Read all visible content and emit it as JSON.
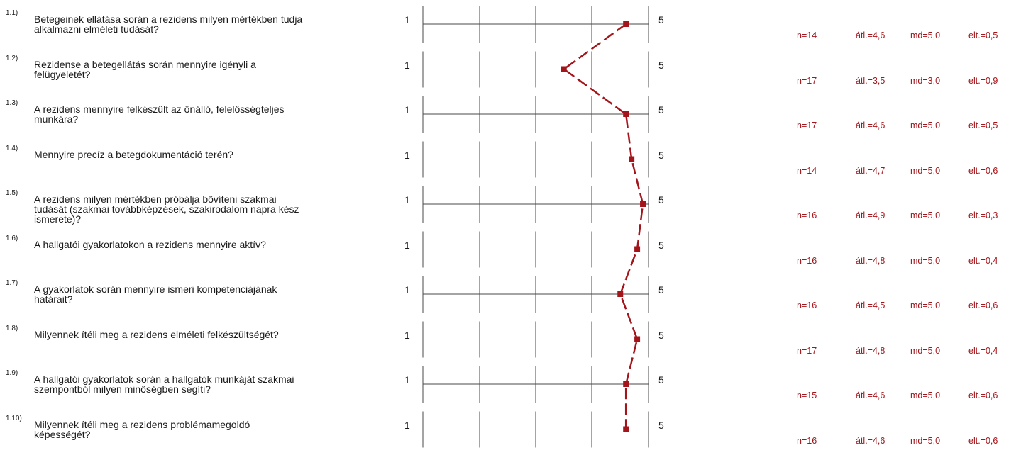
{
  "scale": {
    "min_label": "1",
    "max_label": "5",
    "min": 1,
    "max": 5
  },
  "items": [
    {
      "num": "1.1)",
      "question": "Betegeinek ellátása során a rezidens milyen mértékben tudja alkalmazni elméleti tudását?",
      "n": "n=14",
      "mean": "átl.=4,6",
      "md": "md=5,0",
      "sd": "elt.=0,5"
    },
    {
      "num": "1.2)",
      "question": "Rezidense a betegellátás során mennyire igényli a felügyeletét?",
      "n": "n=17",
      "mean": "átl.=3,5",
      "md": "md=3,0",
      "sd": "elt.=0,9"
    },
    {
      "num": "1.3)",
      "question": "A rezidens mennyire felkészült az önálló, felelősségteljes munkára?",
      "n": "n=17",
      "mean": "átl.=4,6",
      "md": "md=5,0",
      "sd": "elt.=0,5"
    },
    {
      "num": "1.4)",
      "question": "Mennyire precíz a betegdokumentáció terén?",
      "n": "n=14",
      "mean": "átl.=4,7",
      "md": "md=5,0",
      "sd": "elt.=0,6"
    },
    {
      "num": "1.5)",
      "question": "A rezidens milyen mértékben próbálja bővíteni szakmai tudását (szakmai továbbképzések, szakirodalom napra kész ismerete)?",
      "n": "n=16",
      "mean": "átl.=4,9",
      "md": "md=5,0",
      "sd": "elt.=0,3"
    },
    {
      "num": "1.6)",
      "question": "A hallgatói gyakorlatokon a rezidens mennyire aktív?",
      "n": "n=16",
      "mean": "átl.=4,8",
      "md": "md=5,0",
      "sd": "elt.=0,4"
    },
    {
      "num": "1.7)",
      "question": "A gyakorlatok során mennyire ismeri kompetenciájának határait?",
      "n": "n=16",
      "mean": "átl.=4,5",
      "md": "md=5,0",
      "sd": "elt.=0,6"
    },
    {
      "num": "1.8)",
      "question": "Milyennek ítéli meg a rezidens elméleti felkészültségét?",
      "n": "n=17",
      "mean": "átl.=4,8",
      "md": "md=5,0",
      "sd": "elt.=0,4"
    },
    {
      "num": "1.9)",
      "question": "A hallgatói gyakorlatok során a hallgatók munkáját szakmai szempontból milyen minőségben segíti?",
      "n": "n=15",
      "mean": "átl.=4,6",
      "md": "md=5,0",
      "sd": "elt.=0,6"
    },
    {
      "num": "1.10)",
      "question": "Milyennek ítéli meg a rezidens problémamegoldó képességét?",
      "n": "n=16",
      "mean": "átl.=4,6",
      "md": "md=5,0",
      "sd": "elt.=0,6"
    }
  ],
  "chart_data": {
    "type": "line",
    "categories": [
      "1.1)",
      "1.2)",
      "1.3)",
      "1.4)",
      "1.5)",
      "1.6)",
      "1.7)",
      "1.8)",
      "1.9)",
      "1.10)"
    ],
    "values": [
      4.6,
      3.5,
      4.6,
      4.7,
      4.9,
      4.8,
      4.5,
      4.8,
      4.6,
      4.6
    ],
    "xlim": [
      1,
      5
    ],
    "orientation": "horizontal-profile",
    "line_style": "dashed",
    "marker": "square",
    "color": "#a4151b",
    "axis_color": "#4a4a4a"
  }
}
